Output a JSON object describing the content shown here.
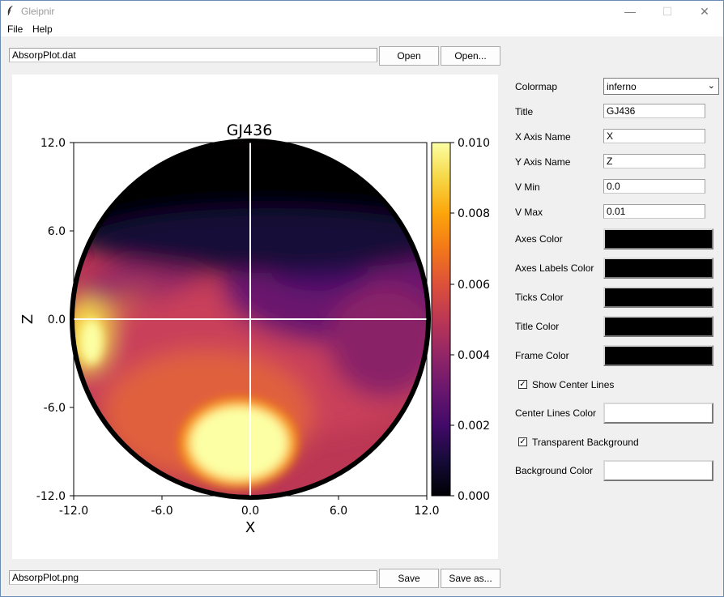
{
  "window": {
    "title": "Gleipnir",
    "minimize": "—",
    "maximize": "☐",
    "close": "✕"
  },
  "menu": {
    "file": "File",
    "help": "Help"
  },
  "input": {
    "path": "AbsorpPlot.dat",
    "open_label": "Open",
    "open_dialog_label": "Open..."
  },
  "output": {
    "path": "AbsorpPlot.png",
    "save_label": "Save",
    "save_as_label": "Save as..."
  },
  "settings": {
    "colormap_label": "Colormap",
    "colormap_value": "inferno",
    "title_label": "Title",
    "title_value": "GJ436",
    "xaxis_label": "X Axis Name",
    "xaxis_value": "X",
    "yaxis_label": "Y Axis Name",
    "yaxis_value": "Z",
    "vmin_label": "V Min",
    "vmin_value": "0.0",
    "vmax_label": "V Max",
    "vmax_value": "0.01",
    "axes_color_label": "Axes Color",
    "axes_color": "#000000",
    "axes_labels_color_label": "Axes Labels Color",
    "axes_labels_color": "#000000",
    "ticks_color_label": "Ticks Color",
    "ticks_color": "#000000",
    "title_color_label": "Title Color",
    "title_color": "#000000",
    "frame_color_label": "Frame Color",
    "frame_color": "#000000",
    "show_center_lines_label": "Show Center Lines",
    "show_center_lines": true,
    "center_lines_color_label": "Center Lines Color",
    "center_lines_color": "#ffffff",
    "transparent_bg_label": "Transparent Background",
    "transparent_bg": true,
    "background_color_label": "Background Color",
    "background_color": "#ffffff"
  },
  "chart_data": {
    "type": "heatmap",
    "title": "GJ436",
    "xlabel": "X",
    "ylabel": "Z",
    "xlim": [
      -12.0,
      12.0
    ],
    "ylim": [
      -12.0,
      12.0
    ],
    "xticks": [
      "-12.0",
      "-6.0",
      "0.0",
      "6.0",
      "12.0"
    ],
    "yticks": [
      "12.0",
      "6.0",
      "0.0",
      "-6.0",
      "-12.0"
    ],
    "colorbar_ticks": [
      "0.010",
      "0.008",
      "0.006",
      "0.004",
      "0.002",
      "0.000"
    ],
    "colormap": "inferno",
    "vmin": 0.0,
    "vmax": 0.01,
    "disk_radius": 12.0,
    "center_lines": true
  }
}
